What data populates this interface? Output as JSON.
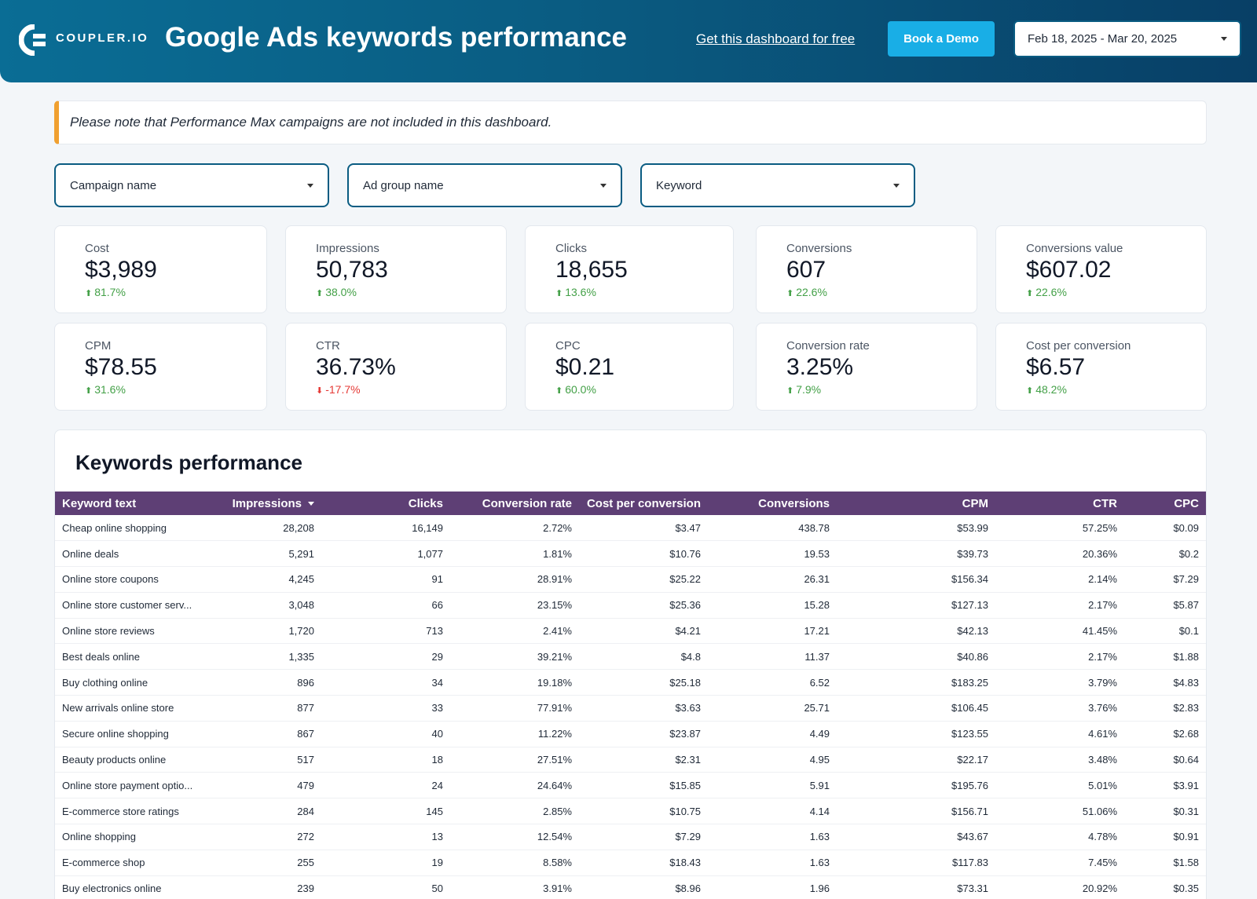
{
  "header": {
    "logo_text": "COUPLER.IO",
    "title": "Google Ads keywords performance",
    "get_link": "Get this dashboard for free",
    "demo_button": "Book a Demo",
    "date_range": "Feb 18, 2025 - Mar 20, 2025"
  },
  "note": "Please note that Performance Max campaigns are not included in this dashboard.",
  "filters": {
    "campaign": "Campaign name",
    "ad_group": "Ad group name",
    "keyword": "Keyword"
  },
  "kpis": [
    {
      "label": "Cost",
      "value": "$3,989",
      "delta": "81.7%",
      "direction": "up"
    },
    {
      "label": "Impressions",
      "value": "50,783",
      "delta": "38.0%",
      "direction": "up"
    },
    {
      "label": "Clicks",
      "value": "18,655",
      "delta": "13.6%",
      "direction": "up"
    },
    {
      "label": "Conversions",
      "value": "607",
      "delta": "22.6%",
      "direction": "up"
    },
    {
      "label": "Conversions value",
      "value": "$607.02",
      "delta": "22.6%",
      "direction": "up"
    },
    {
      "label": "CPM",
      "value": "$78.55",
      "delta": "31.6%",
      "direction": "up"
    },
    {
      "label": "CTR",
      "value": "36.73%",
      "delta": "-17.7%",
      "direction": "down"
    },
    {
      "label": "CPC",
      "value": "$0.21",
      "delta": "60.0%",
      "direction": "up"
    },
    {
      "label": "Conversion rate",
      "value": "3.25%",
      "delta": "7.9%",
      "direction": "up"
    },
    {
      "label": "Cost per conversion",
      "value": "$6.57",
      "delta": "48.2%",
      "direction": "up"
    }
  ],
  "table": {
    "title": "Keywords performance",
    "columns": [
      "Keyword text",
      "Impressions",
      "Clicks",
      "Conversion rate",
      "Cost per conversion",
      "Conversions",
      "CPM",
      "CTR",
      "CPC"
    ],
    "rows": [
      [
        "Cheap online shopping",
        "28,208",
        "16,149",
        "2.72%",
        "$3.47",
        "438.78",
        "$53.99",
        "57.25%",
        "$0.09"
      ],
      [
        "Online deals",
        "5,291",
        "1,077",
        "1.81%",
        "$10.76",
        "19.53",
        "$39.73",
        "20.36%",
        "$0.2"
      ],
      [
        "Online store coupons",
        "4,245",
        "91",
        "28.91%",
        "$25.22",
        "26.31",
        "$156.34",
        "2.14%",
        "$7.29"
      ],
      [
        "Online store customer serv...",
        "3,048",
        "66",
        "23.15%",
        "$25.36",
        "15.28",
        "$127.13",
        "2.17%",
        "$5.87"
      ],
      [
        "Online store reviews",
        "1,720",
        "713",
        "2.41%",
        "$4.21",
        "17.21",
        "$42.13",
        "41.45%",
        "$0.1"
      ],
      [
        "Best deals online",
        "1,335",
        "29",
        "39.21%",
        "$4.8",
        "11.37",
        "$40.86",
        "2.17%",
        "$1.88"
      ],
      [
        "Buy clothing online",
        "896",
        "34",
        "19.18%",
        "$25.18",
        "6.52",
        "$183.25",
        "3.79%",
        "$4.83"
      ],
      [
        "New arrivals online store",
        "877",
        "33",
        "77.91%",
        "$3.63",
        "25.71",
        "$106.45",
        "3.76%",
        "$2.83"
      ],
      [
        "Secure online shopping",
        "867",
        "40",
        "11.22%",
        "$23.87",
        "4.49",
        "$123.55",
        "4.61%",
        "$2.68"
      ],
      [
        "Beauty products online",
        "517",
        "18",
        "27.51%",
        "$2.31",
        "4.95",
        "$22.17",
        "3.48%",
        "$0.64"
      ],
      [
        "Online store payment optio...",
        "479",
        "24",
        "24.64%",
        "$15.85",
        "5.91",
        "$195.76",
        "5.01%",
        "$3.91"
      ],
      [
        "E-commerce store ratings",
        "284",
        "145",
        "2.85%",
        "$10.75",
        "4.14",
        "$156.71",
        "51.06%",
        "$0.31"
      ],
      [
        "Online shopping",
        "272",
        "13",
        "12.54%",
        "$7.29",
        "1.63",
        "$43.67",
        "4.78%",
        "$0.91"
      ],
      [
        "E-commerce shop",
        "255",
        "19",
        "8.58%",
        "$18.43",
        "1.63",
        "$117.83",
        "7.45%",
        "$1.58"
      ],
      [
        "Buy electronics online",
        "239",
        "50",
        "3.91%",
        "$8.96",
        "1.96",
        "$73.31",
        "20.92%",
        "$0.35"
      ]
    ]
  },
  "colors": {
    "header_start": "#0a6d95",
    "header_end": "#083f66",
    "accent_button": "#19aee6",
    "note_bar": "#f0a030",
    "table_header": "#5e3f75",
    "delta_up": "#43a047",
    "delta_down": "#e53935"
  }
}
